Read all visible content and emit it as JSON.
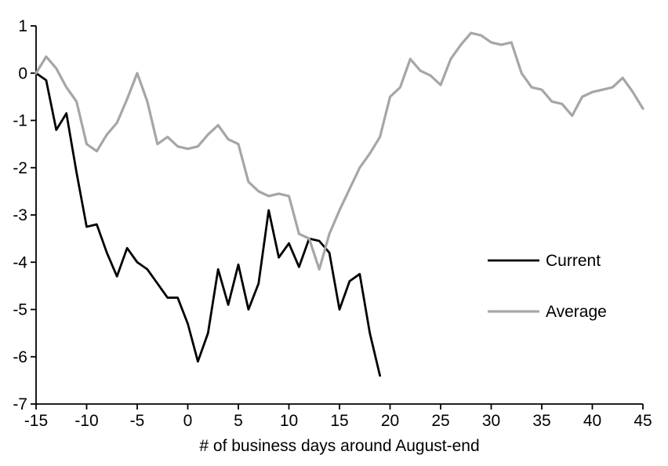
{
  "chart_data": {
    "type": "line",
    "title": "",
    "xlabel": "# of business days around August-end",
    "ylabel": "",
    "xlim": [
      -15,
      45
    ],
    "ylim": [
      -7,
      1
    ],
    "x_ticks": [
      -15,
      -10,
      -5,
      0,
      5,
      10,
      15,
      20,
      25,
      30,
      35,
      40,
      45
    ],
    "y_ticks": [
      1,
      0,
      -1,
      -2,
      -3,
      -4,
      -5,
      -6,
      -7
    ],
    "grid": false,
    "legend_position": "inside-right",
    "series": [
      {
        "name": "Current",
        "color": "#000000",
        "stroke_width": 2.8,
        "x_start": -15,
        "x_step": 1,
        "values": [
          0.0,
          -0.15,
          -1.2,
          -0.85,
          -2.1,
          -3.25,
          -3.2,
          -3.8,
          -4.3,
          -3.7,
          -4.0,
          -4.15,
          -4.45,
          -4.75,
          -4.75,
          -5.3,
          -6.1,
          -5.5,
          -4.15,
          -4.9,
          -4.05,
          -5.0,
          -4.45,
          -2.9,
          -3.9,
          -3.6,
          -4.1,
          -3.5,
          -3.55,
          -3.8,
          -5.0,
          -4.4,
          -4.25,
          -5.5,
          -6.4
        ]
      },
      {
        "name": "Average",
        "color": "#a6a6a6",
        "stroke_width": 3.2,
        "x_start": -15,
        "x_step": 1,
        "values": [
          0.0,
          0.35,
          0.1,
          -0.3,
          -0.6,
          -1.5,
          -1.65,
          -1.3,
          -1.05,
          -0.55,
          0.0,
          -0.6,
          -1.5,
          -1.35,
          -1.55,
          -1.6,
          -1.55,
          -1.3,
          -1.1,
          -1.4,
          -1.5,
          -2.3,
          -2.5,
          -2.6,
          -2.55,
          -2.6,
          -3.4,
          -3.5,
          -4.15,
          -3.4,
          -2.9,
          -2.45,
          -2.0,
          -1.7,
          -1.35,
          -0.5,
          -0.3,
          0.3,
          0.05,
          -0.05,
          -0.25,
          0.3,
          0.6,
          0.85,
          0.8,
          0.65,
          0.6,
          0.65,
          0.0,
          -0.3,
          -0.35,
          -0.6,
          -0.65,
          -0.9,
          -0.5,
          -0.4,
          -0.35,
          -0.3,
          -0.1,
          -0.4,
          -0.75
        ]
      }
    ]
  },
  "colors": {
    "axis": "#000000",
    "text": "#000000",
    "background": "#ffffff"
  },
  "legend": {
    "items": [
      {
        "label": "Current"
      },
      {
        "label": "Average"
      }
    ]
  }
}
